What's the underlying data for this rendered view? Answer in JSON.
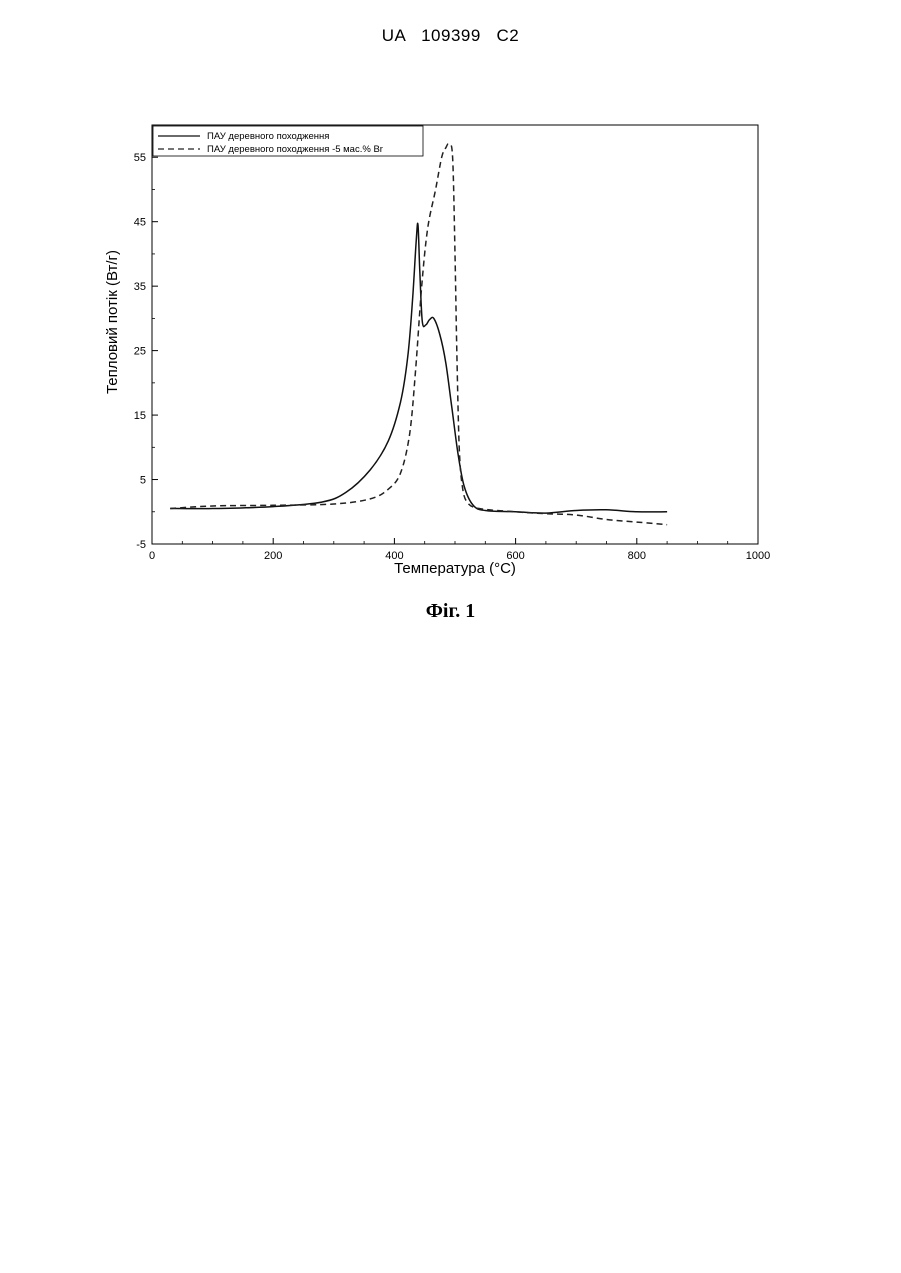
{
  "document": {
    "header": "UA   109399   C2",
    "figure_caption": "Фіг. 1"
  },
  "chart_data": {
    "type": "line",
    "title": "",
    "xlabel": "Температура (°C)",
    "ylabel": "Тепловий потік (Вт/г)",
    "xlim": [
      0,
      1000
    ],
    "ylim": [
      -5,
      60
    ],
    "x_ticks": [
      "0",
      "200",
      "400",
      "600",
      "800",
      "1000"
    ],
    "y_ticks": [
      "-5",
      "5",
      "15",
      "25",
      "35",
      "45",
      "55"
    ],
    "grid": false,
    "legend_position": "top-left",
    "series": [
      {
        "name": "ПАУ деревного походження",
        "style": "solid",
        "color": "#111111",
        "points": [
          [
            30,
            0.5
          ],
          [
            100,
            0.5
          ],
          [
            200,
            0.8
          ],
          [
            280,
            1.5
          ],
          [
            320,
            3
          ],
          [
            360,
            6.5
          ],
          [
            390,
            11
          ],
          [
            410,
            17
          ],
          [
            422,
            24
          ],
          [
            430,
            33
          ],
          [
            436,
            42
          ],
          [
            439,
            44.5
          ],
          [
            442,
            37
          ],
          [
            446,
            29.5
          ],
          [
            452,
            29
          ],
          [
            458,
            29.8
          ],
          [
            465,
            30
          ],
          [
            475,
            27.5
          ],
          [
            485,
            23
          ],
          [
            495,
            16
          ],
          [
            505,
            9
          ],
          [
            515,
            4
          ],
          [
            530,
            1
          ],
          [
            550,
            0.2
          ],
          [
            600,
            0
          ],
          [
            650,
            -0.2
          ],
          [
            700,
            0.2
          ],
          [
            750,
            0.3
          ],
          [
            800,
            0
          ],
          [
            850,
            0
          ]
        ]
      },
      {
        "name": "ПАУ деревного походження -5 мас.% Br",
        "style": "dashed",
        "color": "#222222",
        "points": [
          [
            30,
            0.5
          ],
          [
            100,
            0.9
          ],
          [
            200,
            1
          ],
          [
            300,
            1.2
          ],
          [
            360,
            2
          ],
          [
            390,
            3.5
          ],
          [
            410,
            6
          ],
          [
            425,
            12
          ],
          [
            435,
            22
          ],
          [
            445,
            35
          ],
          [
            455,
            44
          ],
          [
            468,
            50
          ],
          [
            478,
            55
          ],
          [
            485,
            56.5
          ],
          [
            490,
            57
          ],
          [
            496,
            55
          ],
          [
            500,
            40
          ],
          [
            503,
            25
          ],
          [
            507,
            10
          ],
          [
            512,
            4
          ],
          [
            520,
            1.5
          ],
          [
            540,
            0.5
          ],
          [
            600,
            0
          ],
          [
            650,
            -0.3
          ],
          [
            700,
            -0.5
          ],
          [
            750,
            -1.2
          ],
          [
            800,
            -1.6
          ],
          [
            850,
            -2
          ]
        ]
      }
    ]
  }
}
